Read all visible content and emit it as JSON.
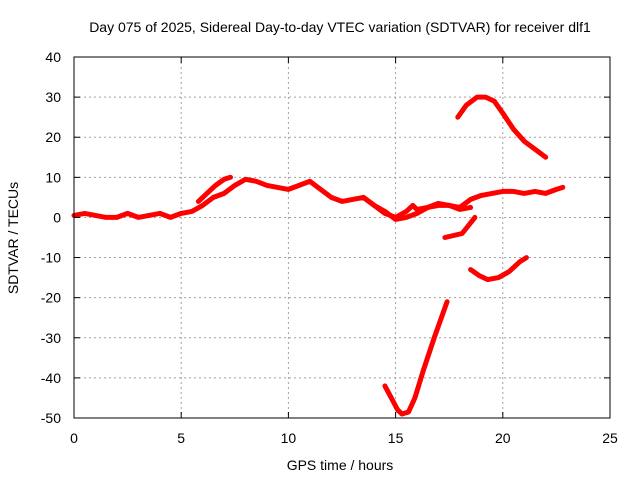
{
  "chart_data": {
    "type": "line",
    "title": "Day 075 of 2025, Sidereal Day-to-day VTEC variation (SDTVAR) for receiver dlf1",
    "xlabel": "GPS time / hours",
    "ylabel": "SDTVAR / TECUs",
    "xlim": [
      0,
      25
    ],
    "ylim": [
      -50,
      40
    ],
    "xticks": [
      0,
      5,
      10,
      15,
      20,
      25
    ],
    "yticks": [
      -50,
      -40,
      -30,
      -20,
      -10,
      0,
      10,
      20,
      30,
      40
    ],
    "xtick_labels": [
      "0",
      "5",
      "10",
      "15",
      "20",
      "25"
    ],
    "ytick_labels": [
      "-50",
      "-40",
      "-30",
      "-20",
      "-10",
      "0",
      "10",
      "20",
      "30",
      "40"
    ],
    "grid": true,
    "color": "#ff0000",
    "series": [
      {
        "name": "main",
        "x": [
          0,
          0.5,
          1,
          1.5,
          2,
          2.5,
          3,
          3.5,
          4,
          4.5,
          5,
          5.5,
          6,
          6.5,
          7,
          7.5,
          8,
          8.5,
          9,
          9.5,
          10,
          10.5,
          11,
          11.5,
          12,
          12.5,
          13,
          13.5,
          14,
          14.5,
          15,
          15.5,
          16,
          16.5,
          17,
          17.5,
          18,
          18.5,
          19,
          19.5,
          20,
          20.5,
          21,
          21.5,
          22,
          22.5,
          22.8
        ],
        "y": [
          0.5,
          1,
          0.5,
          0,
          0,
          1,
          0,
          0.5,
          1,
          0,
          1,
          1.5,
          3,
          5,
          6,
          8,
          9.5,
          9,
          8,
          7.5,
          7,
          8,
          9,
          7,
          5,
          4,
          4.5,
          5,
          3,
          1.5,
          -0.5,
          0,
          1,
          2.5,
          3.5,
          3,
          2.5,
          4.5,
          5.5,
          6,
          6.5,
          6.5,
          6,
          6.5,
          6,
          7,
          7.5
        ]
      },
      {
        "name": "upper-branch",
        "x": [
          5.8,
          6.2,
          6.6,
          7.0,
          7.3
        ],
        "y": [
          4,
          6,
          8,
          9.5,
          10
        ]
      },
      {
        "name": "mid-branch",
        "x": [
          13.5,
          14,
          14.5,
          15,
          15.5,
          15.8,
          16,
          16.5,
          17,
          17.5,
          18,
          18.5
        ],
        "y": [
          5,
          3,
          1,
          0,
          1.5,
          3,
          2,
          2.5,
          3,
          3,
          2,
          2.5
        ]
      },
      {
        "name": "peak",
        "x": [
          17.9,
          18.3,
          18.8,
          19.2,
          19.6,
          20,
          20.5,
          21,
          21.5,
          22
        ],
        "y": [
          25,
          28,
          30,
          30,
          29,
          26,
          22,
          19,
          17,
          15
        ]
      },
      {
        "name": "dip",
        "x": [
          14.5,
          14.8,
          15.1,
          15.3,
          15.6,
          15.9,
          16.3,
          16.8,
          17.2,
          17.4
        ],
        "y": [
          -42,
          -45,
          -48,
          -49,
          -48.5,
          -45,
          -38,
          -30,
          -24,
          -21
        ]
      },
      {
        "name": "neg-small",
        "x": [
          17.3,
          17.7,
          18.1,
          18.4,
          18.7
        ],
        "y": [
          -5,
          -4.5,
          -4,
          -2,
          0
        ]
      },
      {
        "name": "neg-mid",
        "x": [
          18.5,
          18.9,
          19.3,
          19.8,
          20.3,
          20.8,
          21.1
        ],
        "y": [
          -13,
          -14.5,
          -15.5,
          -15,
          -13.5,
          -11,
          -10
        ]
      }
    ]
  }
}
